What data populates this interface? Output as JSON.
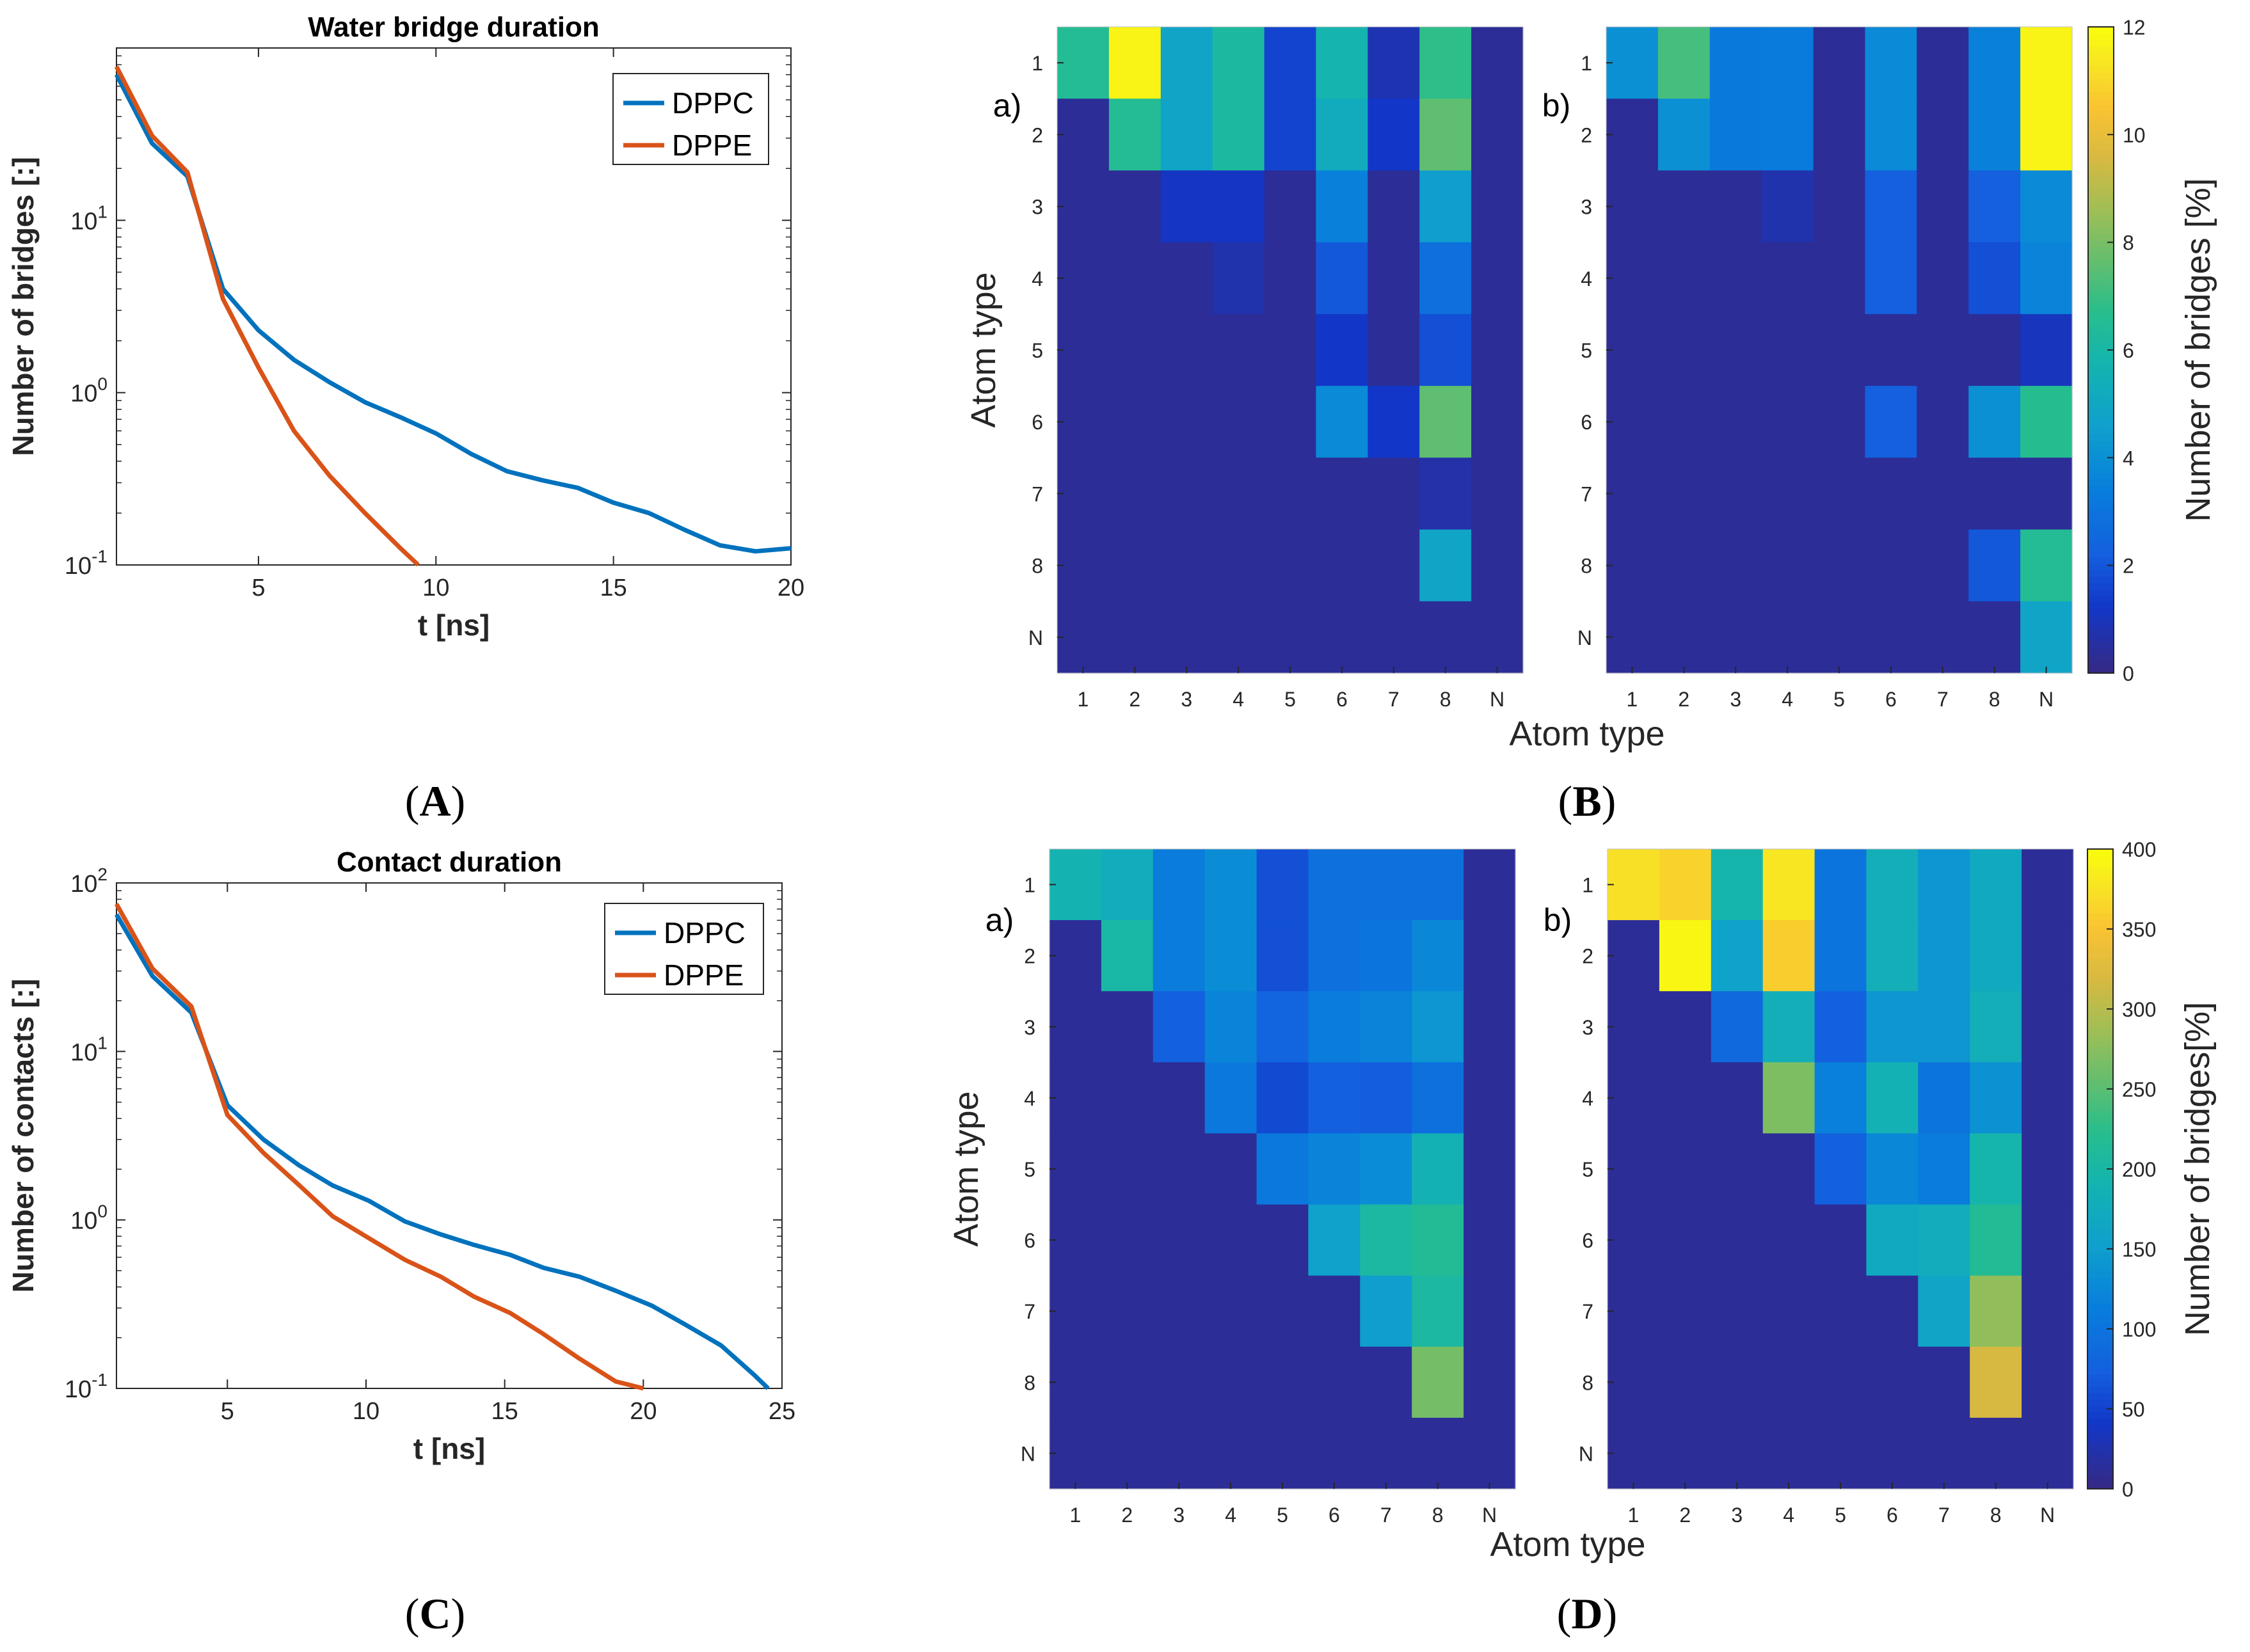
{
  "captions": [
    "A",
    "B",
    "C",
    "D"
  ],
  "chart_data": [
    {
      "id": "A",
      "type": "line",
      "title": "Water bridge duration",
      "xlabel": "t [ns]",
      "ylabel": "Number of bridges [:]",
      "xlim": [
        1,
        20
      ],
      "ylim": [
        0.1,
        100
      ],
      "yscale": "log",
      "xticks": [
        "5",
        "10",
        "15",
        "20"
      ],
      "xtick_values": [
        5,
        10,
        15,
        20
      ],
      "yticks": [
        {
          "base": "10",
          "exp": "-1",
          "value": 0.1
        },
        {
          "base": "10",
          "exp": "0",
          "value": 1
        },
        {
          "base": "10",
          "exp": "1",
          "value": 10
        }
      ],
      "legend": {
        "position": "top-right"
      },
      "series": [
        {
          "name": "DPPC",
          "color": "#0072BD",
          "x": [
            1,
            2,
            3,
            4,
            5,
            6,
            7,
            8,
            9,
            10,
            11,
            12,
            13,
            14,
            15,
            16,
            17,
            18,
            19,
            20
          ],
          "y": [
            70,
            28,
            18,
            4.0,
            2.3,
            1.55,
            1.15,
            0.88,
            0.72,
            0.58,
            0.44,
            0.35,
            0.31,
            0.28,
            0.23,
            0.2,
            0.16,
            0.13,
            0.12,
            0.125
          ]
        },
        {
          "name": "DPPE",
          "color": "#D95319",
          "x": [
            1,
            2,
            3,
            4,
            5,
            6,
            7,
            8,
            9,
            9.5
          ],
          "y": [
            78,
            31,
            19,
            3.5,
            1.4,
            0.6,
            0.33,
            0.2,
            0.125,
            0.1
          ]
        }
      ]
    },
    {
      "id": "C",
      "type": "line",
      "title": "Contact duration",
      "xlabel": "t [ns]",
      "ylabel": "Number of contacts [:]",
      "xlim": [
        1,
        25
      ],
      "ylim": [
        0.1,
        100
      ],
      "yscale": "log",
      "xticks": [
        "5",
        "10",
        "15",
        "20",
        "25"
      ],
      "xtick_values": [
        5,
        10,
        15,
        20,
        25
      ],
      "yticks": [
        {
          "base": "10",
          "exp": "-1",
          "value": 0.1
        },
        {
          "base": "10",
          "exp": "0",
          "value": 1
        },
        {
          "base": "10",
          "exp": "1",
          "value": 10
        },
        {
          "base": "10",
          "exp": "2",
          "value": 100
        }
      ],
      "legend": {
        "position": "top-right"
      },
      "series": [
        {
          "name": "DPPC",
          "color": "#0072BD",
          "x": [
            1,
            2.3,
            3.7,
            5,
            6.3,
            7.6,
            8.8,
            10.1,
            11.4,
            12.7,
            13.9,
            15.2,
            16.4,
            17.7,
            19,
            20.3,
            21.5,
            22.8,
            24,
            24.5
          ],
          "y": [
            65,
            28,
            17,
            4.8,
            3.0,
            2.1,
            1.6,
            1.3,
            0.98,
            0.82,
            0.71,
            0.62,
            0.52,
            0.46,
            0.38,
            0.31,
            0.24,
            0.18,
            0.12,
            0.1
          ]
        },
        {
          "name": "DPPE",
          "color": "#D95319",
          "x": [
            1,
            2.3,
            3.7,
            5,
            6.3,
            7.6,
            8.8,
            10.1,
            11.4,
            12.7,
            13.9,
            15.2,
            16.4,
            17.7,
            19,
            20
          ],
          "y": [
            75,
            31,
            18.5,
            4.2,
            2.5,
            1.6,
            1.05,
            0.78,
            0.58,
            0.46,
            0.35,
            0.28,
            0.21,
            0.15,
            0.11,
            0.1
          ]
        }
      ]
    },
    {
      "id": "B",
      "type": "heatmap",
      "xlabel": "Atom type",
      "ylabel": "Atom type",
      "categories": [
        "1",
        "2",
        "3",
        "4",
        "5",
        "6",
        "7",
        "8",
        "N"
      ],
      "colorbar": {
        "label": "Number of bridges [%]",
        "min": 0,
        "max": 12,
        "ticks": [
          "0",
          "2",
          "4",
          "6",
          "8",
          "10",
          "12"
        ],
        "tick_values": [
          0,
          2,
          4,
          6,
          8,
          10,
          12
        ]
      },
      "panels": [
        {
          "label": "a)",
          "values": [
            [
              6.5,
              11.8,
              4.8,
              6.2,
              1.5,
              5.8,
              0.8,
              6.8,
              0.3
            ],
            [
              0.3,
              6.5,
              4.8,
              6.2,
              1.5,
              5.2,
              1.2,
              7.6,
              0.3
            ],
            [
              0.3,
              0.3,
              1.1,
              1.1,
              0.3,
              3.5,
              0.3,
              4.5,
              0.3
            ],
            [
              0.3,
              0.3,
              0.3,
              0.7,
              0.3,
              2.0,
              0.3,
              2.8,
              0.3
            ],
            [
              0.3,
              0.3,
              0.3,
              0.3,
              0.3,
              1.2,
              0.3,
              1.8,
              0.3
            ],
            [
              0.3,
              0.3,
              0.3,
              0.3,
              0.3,
              3.8,
              1.2,
              7.6,
              0.3
            ],
            [
              0.3,
              0.3,
              0.3,
              0.3,
              0.3,
              0.3,
              0.3,
              0.6,
              0.3
            ],
            [
              0.3,
              0.3,
              0.3,
              0.3,
              0.3,
              0.3,
              0.3,
              4.8,
              0.3
            ],
            [
              0.3,
              0.3,
              0.3,
              0.3,
              0.3,
              0.3,
              0.3,
              0.3,
              0.3
            ]
          ]
        },
        {
          "label": "b)",
          "values": [
            [
              4.0,
              7.2,
              3.2,
              3.3,
              0.3,
              3.8,
              0.3,
              3.5,
              11.8
            ],
            [
              0.3,
              4.0,
              3.2,
              3.3,
              0.3,
              3.8,
              0.3,
              3.5,
              11.8
            ],
            [
              0.3,
              0.3,
              0.3,
              0.7,
              0.3,
              2.2,
              0.3,
              2.2,
              3.8
            ],
            [
              0.3,
              0.3,
              0.3,
              0.3,
              0.3,
              2.2,
              0.3,
              1.8,
              3.6
            ],
            [
              0.3,
              0.3,
              0.3,
              0.3,
              0.3,
              0.3,
              0.3,
              0.3,
              1.0
            ],
            [
              0.3,
              0.3,
              0.3,
              0.3,
              0.3,
              2.2,
              0.3,
              4.0,
              6.6
            ],
            [
              0.3,
              0.3,
              0.3,
              0.3,
              0.3,
              0.3,
              0.3,
              0.3,
              0.3
            ],
            [
              0.3,
              0.3,
              0.3,
              0.3,
              0.3,
              0.3,
              0.3,
              2.0,
              6.5
            ],
            [
              0.3,
              0.3,
              0.3,
              0.3,
              0.3,
              0.3,
              0.3,
              0.3,
              4.8
            ]
          ]
        }
      ]
    },
    {
      "id": "D",
      "type": "heatmap",
      "xlabel": "Atom type",
      "ylabel": "Atom type",
      "categories": [
        "1",
        "2",
        "3",
        "4",
        "5",
        "6",
        "7",
        "8",
        "N"
      ],
      "colorbar": {
        "label": "Number of bridges[%]",
        "min": 0,
        "max": 400,
        "ticks": [
          "0",
          "50",
          "100",
          "150",
          "200",
          "250",
          "300",
          "350",
          "400"
        ],
        "tick_values": [
          0,
          50,
          100,
          150,
          200,
          250,
          300,
          350,
          400
        ]
      },
      "panels": [
        {
          "label": "a)",
          "values": [
            [
              190,
              175,
              110,
              130,
              60,
              95,
              95,
              95,
              10
            ],
            [
              10,
              200,
              110,
              130,
              60,
              95,
              100,
              125,
              10
            ],
            [
              10,
              10,
              75,
              120,
              80,
              110,
              120,
              140,
              10
            ],
            [
              10,
              10,
              10,
              105,
              55,
              75,
              70,
              95,
              10
            ],
            [
              10,
              10,
              10,
              10,
              105,
              120,
              130,
              185,
              10
            ],
            [
              10,
              10,
              10,
              10,
              10,
              155,
              205,
              215,
              10
            ],
            [
              10,
              10,
              10,
              10,
              10,
              10,
              150,
              205,
              10
            ],
            [
              10,
              10,
              10,
              10,
              10,
              10,
              10,
              265,
              10
            ],
            [
              10,
              10,
              10,
              10,
              10,
              10,
              10,
              10,
              10
            ]
          ]
        },
        {
          "label": "b)",
          "values": [
            [
              375,
              365,
              195,
              380,
              100,
              180,
              140,
              170,
              10
            ],
            [
              10,
              395,
              155,
              360,
              100,
              180,
              140,
              170,
              10
            ],
            [
              10,
              10,
              85,
              180,
              75,
              140,
              140,
              180,
              10
            ],
            [
              10,
              10,
              10,
              270,
              115,
              185,
              100,
              135,
              10
            ],
            [
              10,
              10,
              10,
              10,
              75,
              125,
              110,
              195,
              10
            ],
            [
              10,
              10,
              10,
              10,
              10,
              170,
              175,
              215,
              10
            ],
            [
              10,
              10,
              10,
              10,
              10,
              10,
              160,
              280,
              10
            ],
            [
              10,
              10,
              10,
              10,
              10,
              10,
              10,
              320,
              10
            ],
            [
              10,
              10,
              10,
              10,
              10,
              10,
              10,
              10,
              10
            ]
          ]
        }
      ]
    }
  ]
}
